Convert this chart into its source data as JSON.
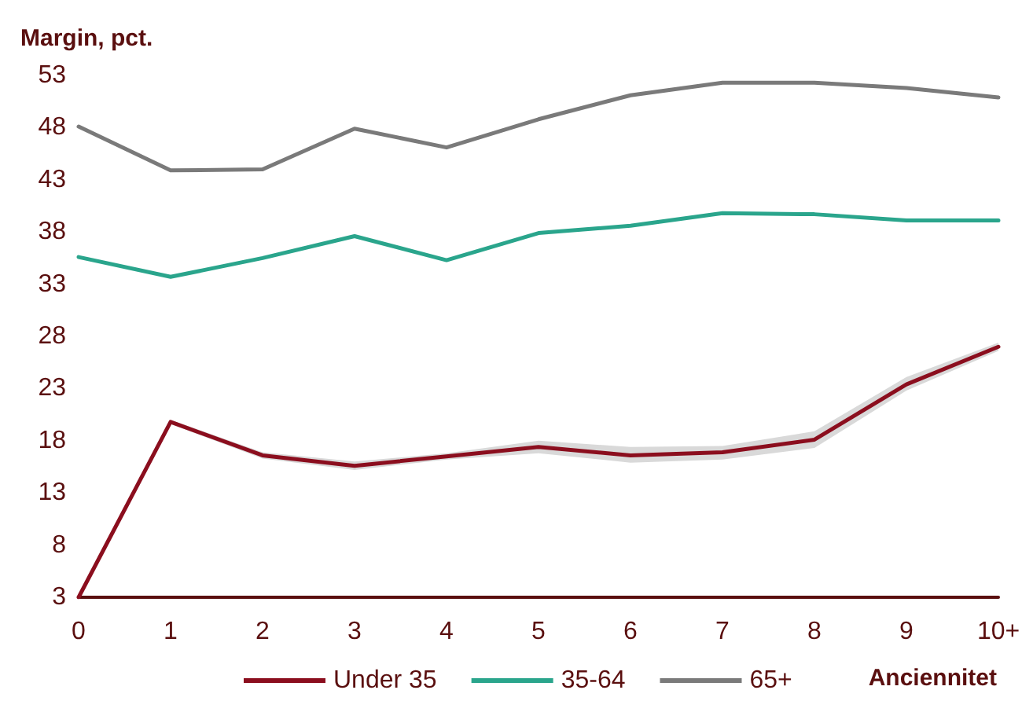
{
  "chart_data": {
    "type": "line",
    "ylabel": "Margin, pct.",
    "xlabel": "Anciennitet",
    "categories": [
      "0",
      "1",
      "2",
      "3",
      "4",
      "5",
      "6",
      "7",
      "8",
      "9",
      "10+"
    ],
    "series": [
      {
        "name": "Under 35",
        "color": "#8b0e1e",
        "values": [
          3,
          19.8,
          16.6,
          15.6,
          16.5,
          17.4,
          16.6,
          16.9,
          18.1,
          23.4,
          27.0
        ],
        "lower": [
          3,
          19.6,
          16.3,
          15.2,
          16.2,
          16.8,
          15.9,
          16.2,
          17.3,
          22.8,
          26.6
        ],
        "upper": [
          3,
          20.0,
          16.9,
          16.0,
          16.8,
          18.0,
          17.4,
          17.5,
          18.9,
          24.1,
          27.4
        ]
      },
      {
        "name": "35-64",
        "color": "#2aa58c",
        "values": [
          35.6,
          33.7,
          35.5,
          37.6,
          35.3,
          37.9,
          38.6,
          39.8,
          39.7,
          39.1,
          39.1
        ]
      },
      {
        "name": "65+",
        "color": "#7a7a7a",
        "values": [
          48.1,
          43.9,
          44.0,
          47.9,
          46.1,
          48.8,
          51.1,
          52.3,
          52.3,
          51.8,
          50.9
        ]
      }
    ],
    "ylim": [
      3,
      53
    ],
    "yticks": [
      3,
      8,
      13,
      18,
      23,
      28,
      33,
      38,
      43,
      48,
      53
    ],
    "grid": false,
    "legend": "bottom",
    "marker": "none",
    "line_style": "solid"
  }
}
